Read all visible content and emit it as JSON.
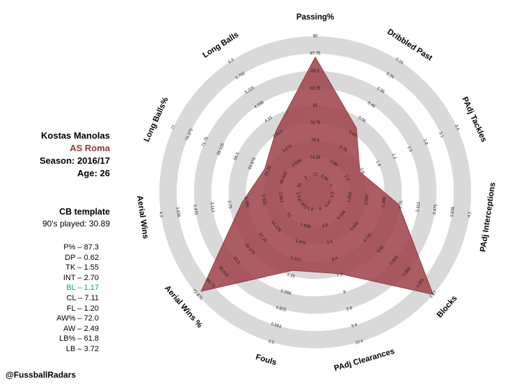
{
  "header": {
    "player": "Kostas Manolas",
    "team": "AS Roma",
    "season_label": "Season: 2016/17",
    "age_label": "Age: 26",
    "template_label": "CB template",
    "nineties_label": "90's played: 30.89"
  },
  "stats_list": [
    {
      "text": "P% – 87.3",
      "highlight": false
    },
    {
      "text": "DP – 0.62",
      "highlight": false
    },
    {
      "text": "TK – 1.55",
      "highlight": false
    },
    {
      "text": "INT – 2.70",
      "highlight": false
    },
    {
      "text": "BL – 1.17",
      "highlight": true
    },
    {
      "text": "CL – 7.11",
      "highlight": false
    },
    {
      "text": "FL – 1.20",
      "highlight": false
    },
    {
      "text": "AW% – 72.0",
      "highlight": false
    },
    {
      "text": "AW – 2.49",
      "highlight": false
    },
    {
      "text": "LB% – 61.8",
      "highlight": false
    },
    {
      "text": "LB – 3.72",
      "highlight": false
    }
  ],
  "credit": "@FussballRadars",
  "colors": {
    "team": "#953735",
    "highlight_green": "#00b050",
    "ring_gray": "#d9d9d9",
    "ring_white": "#ffffff",
    "polygon_fill": "#9d4148",
    "polygon_stroke": "#8a363c",
    "tick_text": "#1a1a1a",
    "axis_text": "#000000"
  },
  "chart_data": {
    "type": "radar",
    "title": "Kostas Manolas CB template radar 2016/17",
    "rings": 8,
    "axes": [
      {
        "label": "Passing%",
        "value": 87.3,
        "ticks": [
          72,
          74.25,
          76.5,
          78.75,
          81,
          83.25,
          85.5,
          87.75,
          90
        ]
      },
      {
        "label": "Dribbled Past",
        "value": 0.62,
        "ticks": [
          0.96,
          0.86,
          0.76,
          0.66,
          0.56,
          0.46,
          0.36,
          0.26,
          0.16
        ]
      },
      {
        "label": "PAdj Tackles",
        "value": 1.55,
        "ticks": [
          1,
          1.3,
          1.6,
          1.9,
          2.2,
          2.5,
          2.8,
          3.1,
          3.4
        ]
      },
      {
        "label": "PAdj Interceptions",
        "value": 2.7,
        "ticks": [
          1.3,
          1.663,
          2.025,
          2.388,
          2.75,
          3.113,
          3.475,
          3.838,
          4.2
        ]
      },
      {
        "label": "Blocks",
        "value": 1.17,
        "ticks": [
          0.47,
          0.558,
          0.645,
          0.732,
          0.82,
          0.908,
          0.995,
          1.083,
          1.17
        ]
      },
      {
        "label": "PAdj Clearances",
        "value": 7.11,
        "ticks": [
          4,
          4.8,
          5.6,
          6.4,
          7.2,
          8,
          8.8,
          9.6,
          10.4
        ]
      },
      {
        "label": "Fouls",
        "value": 1.2,
        "ticks": [
          1.8,
          1.638,
          1.475,
          1.313,
          1.15,
          0.988,
          0.825,
          0.663,
          0.5
        ]
      },
      {
        "label": "Aerial Wins %",
        "value": 72,
        "ticks": [
          47.875,
          51,
          54.125,
          57.25,
          60.375,
          63.5,
          66.625,
          69.75,
          72.875
        ]
      },
      {
        "label": "Aerial Wins",
        "value": 2.49,
        "ticks": [
          1.3,
          1.663,
          2.025,
          2.388,
          2.75,
          3.113,
          3.475,
          3.838,
          4.2
        ]
      },
      {
        "label": "Long Balls%",
        "value": 61.8,
        "ticks": [
          56,
          58.625,
          61.25,
          63.875,
          66.5,
          69.125,
          71.75,
          74.375,
          77
        ]
      },
      {
        "label": "Long Balls",
        "value": 3.72,
        "ticks": [
          2,
          2.538,
          3.075,
          3.613,
          4.15,
          4.688,
          5.225,
          5.762,
          6.3
        ]
      }
    ]
  }
}
